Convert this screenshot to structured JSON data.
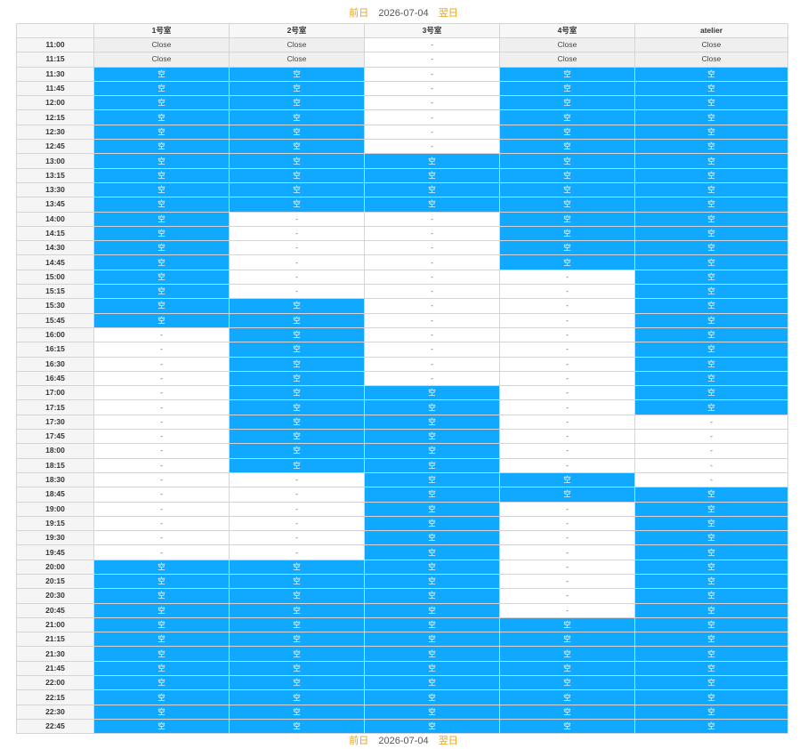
{
  "nav": {
    "prev_label": "前日",
    "date": "2026-07-04",
    "next_label": "翌日"
  },
  "columns": [
    "",
    "1号室",
    "2号室",
    "3号室",
    "4号室",
    "atelier"
  ],
  "legend": {
    "C": "Close",
    "F": "空",
    "N": "-"
  },
  "colors": {
    "free": "#11a8ff",
    "close": "#efefef",
    "nav_link": "#e8a317"
  },
  "rows": [
    {
      "time": "11:00",
      "cells": "CCNCC"
    },
    {
      "time": "11:15",
      "cells": "CCNCC"
    },
    {
      "time": "11:30",
      "cells": "FFNFF"
    },
    {
      "time": "11:45",
      "cells": "FFNFF"
    },
    {
      "time": "12:00",
      "cells": "FFNFF"
    },
    {
      "time": "12:15",
      "cells": "FFNFF"
    },
    {
      "time": "12:30",
      "cells": "FFNFF"
    },
    {
      "time": "12:45",
      "cells": "FFNFF"
    },
    {
      "time": "13:00",
      "cells": "FFFFF"
    },
    {
      "time": "13:15",
      "cells": "FFFFF"
    },
    {
      "time": "13:30",
      "cells": "FFFFF"
    },
    {
      "time": "13:45",
      "cells": "FFFFF"
    },
    {
      "time": "14:00",
      "cells": "FNNFF"
    },
    {
      "time": "14:15",
      "cells": "FNNFF"
    },
    {
      "time": "14:30",
      "cells": "FNNFF"
    },
    {
      "time": "14:45",
      "cells": "FNNFF"
    },
    {
      "time": "15:00",
      "cells": "FNNNF"
    },
    {
      "time": "15:15",
      "cells": "FNNNF"
    },
    {
      "time": "15:30",
      "cells": "FFNNF"
    },
    {
      "time": "15:45",
      "cells": "FFNNF"
    },
    {
      "time": "16:00",
      "cells": "NFNNF"
    },
    {
      "time": "16:15",
      "cells": "NFNNF"
    },
    {
      "time": "16:30",
      "cells": "NFNNF"
    },
    {
      "time": "16:45",
      "cells": "NFNNF"
    },
    {
      "time": "17:00",
      "cells": "NFFNF"
    },
    {
      "time": "17:15",
      "cells": "NFFNF"
    },
    {
      "time": "17:30",
      "cells": "NFFNN"
    },
    {
      "time": "17:45",
      "cells": "NFFNN"
    },
    {
      "time": "18:00",
      "cells": "NFFNN"
    },
    {
      "time": "18:15",
      "cells": "NFFNN"
    },
    {
      "time": "18:30",
      "cells": "NNFFN"
    },
    {
      "time": "18:45",
      "cells": "NNFFF"
    },
    {
      "time": "19:00",
      "cells": "NNFNF"
    },
    {
      "time": "19:15",
      "cells": "NNFNF"
    },
    {
      "time": "19:30",
      "cells": "NNFNF"
    },
    {
      "time": "19:45",
      "cells": "NNFNF"
    },
    {
      "time": "20:00",
      "cells": "FFFNF"
    },
    {
      "time": "20:15",
      "cells": "FFFNF"
    },
    {
      "time": "20:30",
      "cells": "FFFNF"
    },
    {
      "time": "20:45",
      "cells": "FFFNF"
    },
    {
      "time": "21:00",
      "cells": "FFFFF"
    },
    {
      "time": "21:15",
      "cells": "FFFFF"
    },
    {
      "time": "21:30",
      "cells": "FFFFF"
    },
    {
      "time": "21:45",
      "cells": "FFFFF"
    },
    {
      "time": "22:00",
      "cells": "FFFFF"
    },
    {
      "time": "22:15",
      "cells": "FFFFF"
    },
    {
      "time": "22:30",
      "cells": "FFFFF"
    },
    {
      "time": "22:45",
      "cells": "FFFFF"
    }
  ]
}
